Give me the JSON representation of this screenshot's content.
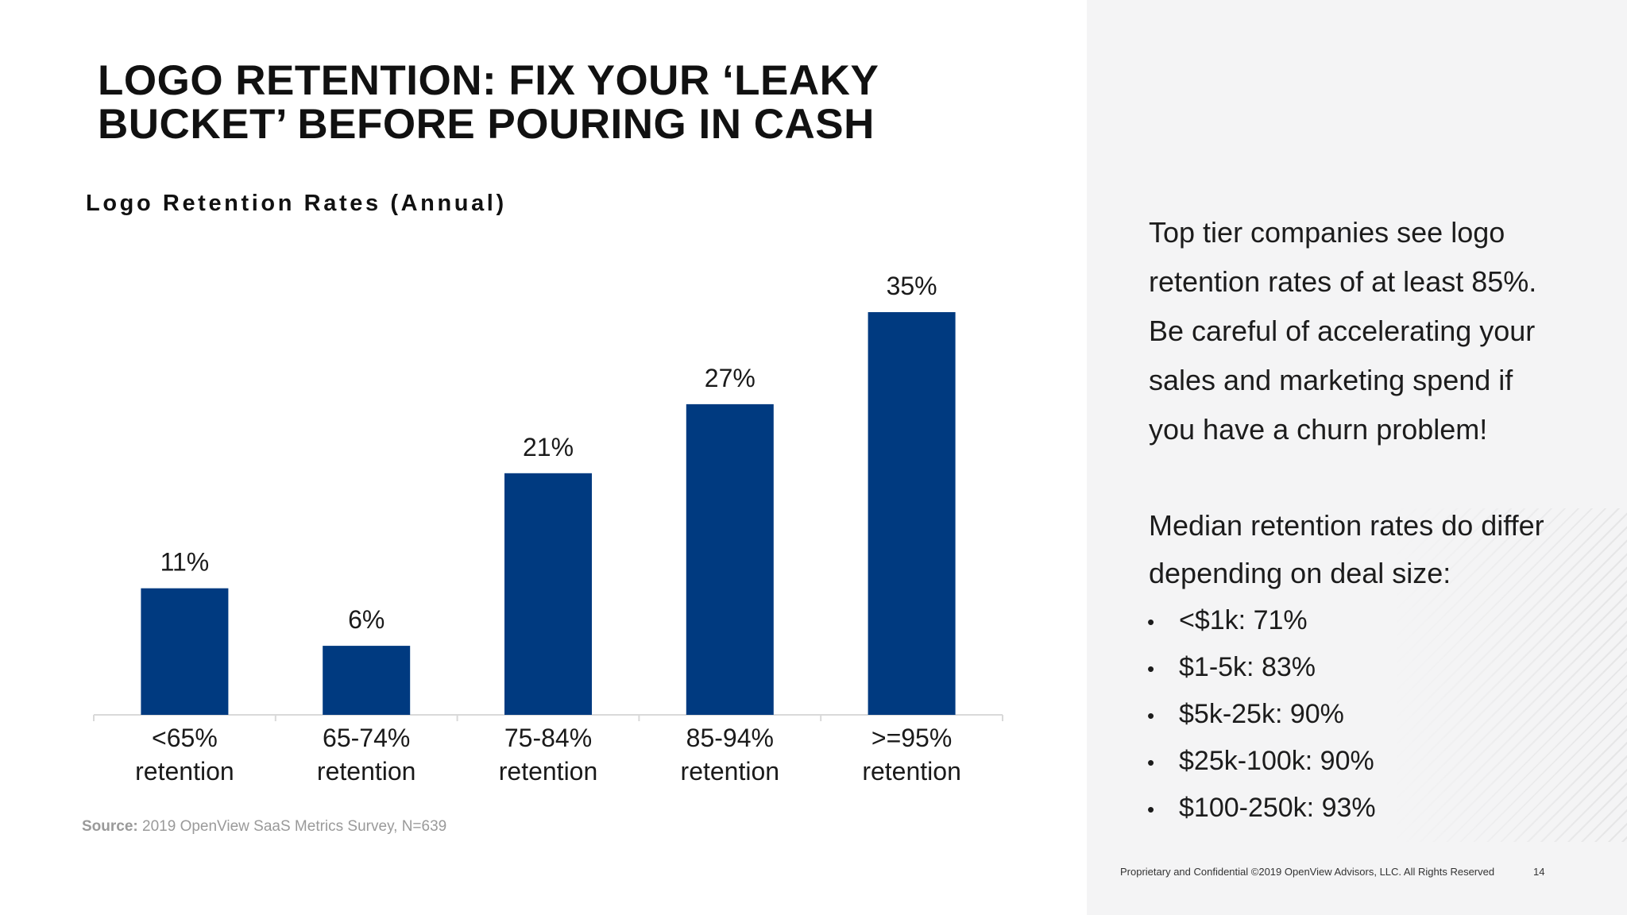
{
  "title": {
    "line1": "LOGO RETENTION: FIX YOUR ‘LEAKY",
    "line2": "BUCKET’ BEFORE POURING IN CASH"
  },
  "chart_data": {
    "type": "bar",
    "title": "Logo Retention Rates (Annual)",
    "categories": [
      [
        "<65%",
        "retention"
      ],
      [
        "65-74%",
        "retention"
      ],
      [
        "75-84%",
        "retention"
      ],
      [
        "85-94%",
        "retention"
      ],
      [
        ">=95%",
        "retention"
      ]
    ],
    "values": [
      11,
      6,
      21,
      27,
      35
    ],
    "data_labels": [
      "11%",
      "6%",
      "21%",
      "27%",
      "35%"
    ],
    "unit": "%",
    "xlabel": "",
    "ylabel": "",
    "ylim": [
      0,
      35
    ],
    "grid": false,
    "legend": "none",
    "bar_color": "#003A80",
    "axis_color": "#d9d9d9"
  },
  "source": {
    "label": "Source:",
    "text": " 2019 OpenView SaaS Metrics Survey, N=639"
  },
  "sidebar": {
    "paragraph1": [
      "Top tier companies see logo",
      "retention rates of at least 85%.",
      "Be careful of accelerating your",
      "sales and marketing spend if",
      "you have a churn problem!"
    ],
    "median_heading": [
      "Median retention rates do differ",
      "depending on deal size:"
    ],
    "bullet_symbol": "•",
    "bullets": [
      "<$1k: 71%",
      "$1-5k: 83%",
      "$5k-25k: 90%",
      "$25k-100k: 90%",
      "$100-250k: 93%"
    ]
  },
  "footer": {
    "text": "Proprietary and Confidential ©2019 OpenView Advisors, LLC. All Rights Reserved",
    "page": "14"
  }
}
